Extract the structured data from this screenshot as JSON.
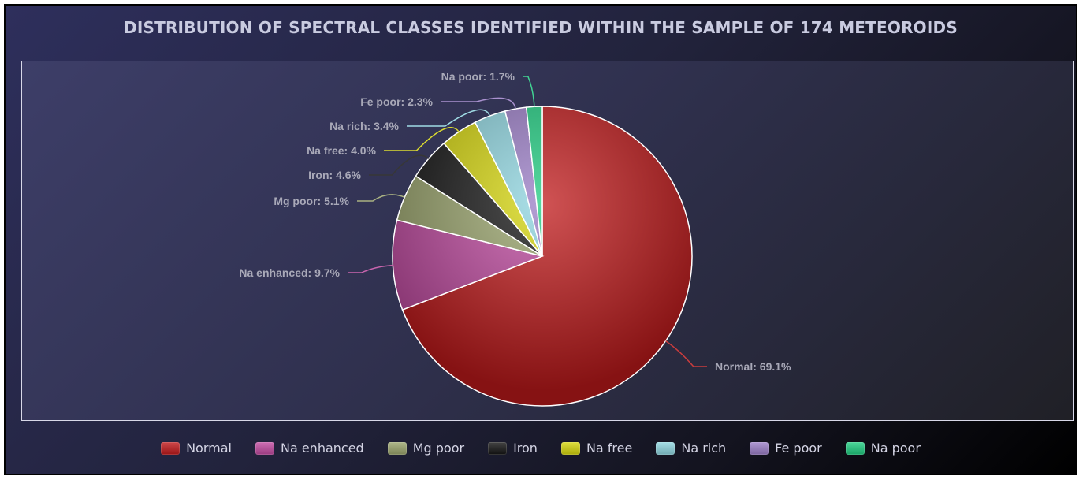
{
  "chart_data": {
    "type": "pie",
    "title": "DISTRIBUTION OF SPECTRAL CLASSES IDENTIFIED WITHIN THE SAMPLE OF 174 METEOROIDS",
    "start_angle_deg": 0,
    "direction": "clockwise",
    "slices": [
      {
        "name": "Normal",
        "value": 69.1,
        "label": "Normal: 69.1%",
        "color": "#c0191b"
      },
      {
        "name": "Na enhanced",
        "value": 9.7,
        "label": "Na enhanced: 9.7%",
        "color": "#c04aa0"
      },
      {
        "name": "Mg poor",
        "value": 5.1,
        "label": "Mg poor: 5.1%",
        "color": "#9aa46c"
      },
      {
        "name": "Iron",
        "value": 4.6,
        "label": "Iron: 4.6%",
        "color": "#141414"
      },
      {
        "name": "Na free",
        "value": 4.0,
        "label": "Na free: 4.0%",
        "color": "#d6d60c"
      },
      {
        "name": "Na rich",
        "value": 3.4,
        "label": "Na rich: 3.4%",
        "color": "#8fd6e0"
      },
      {
        "name": "Fe poor",
        "value": 2.3,
        "label": "Fe poor: 2.3%",
        "color": "#9b7ec7"
      },
      {
        "name": "Na poor",
        "value": 1.7,
        "label": "Na poor: 1.7%",
        "color": "#1fcc80"
      }
    ],
    "legend_position": "bottom"
  }
}
